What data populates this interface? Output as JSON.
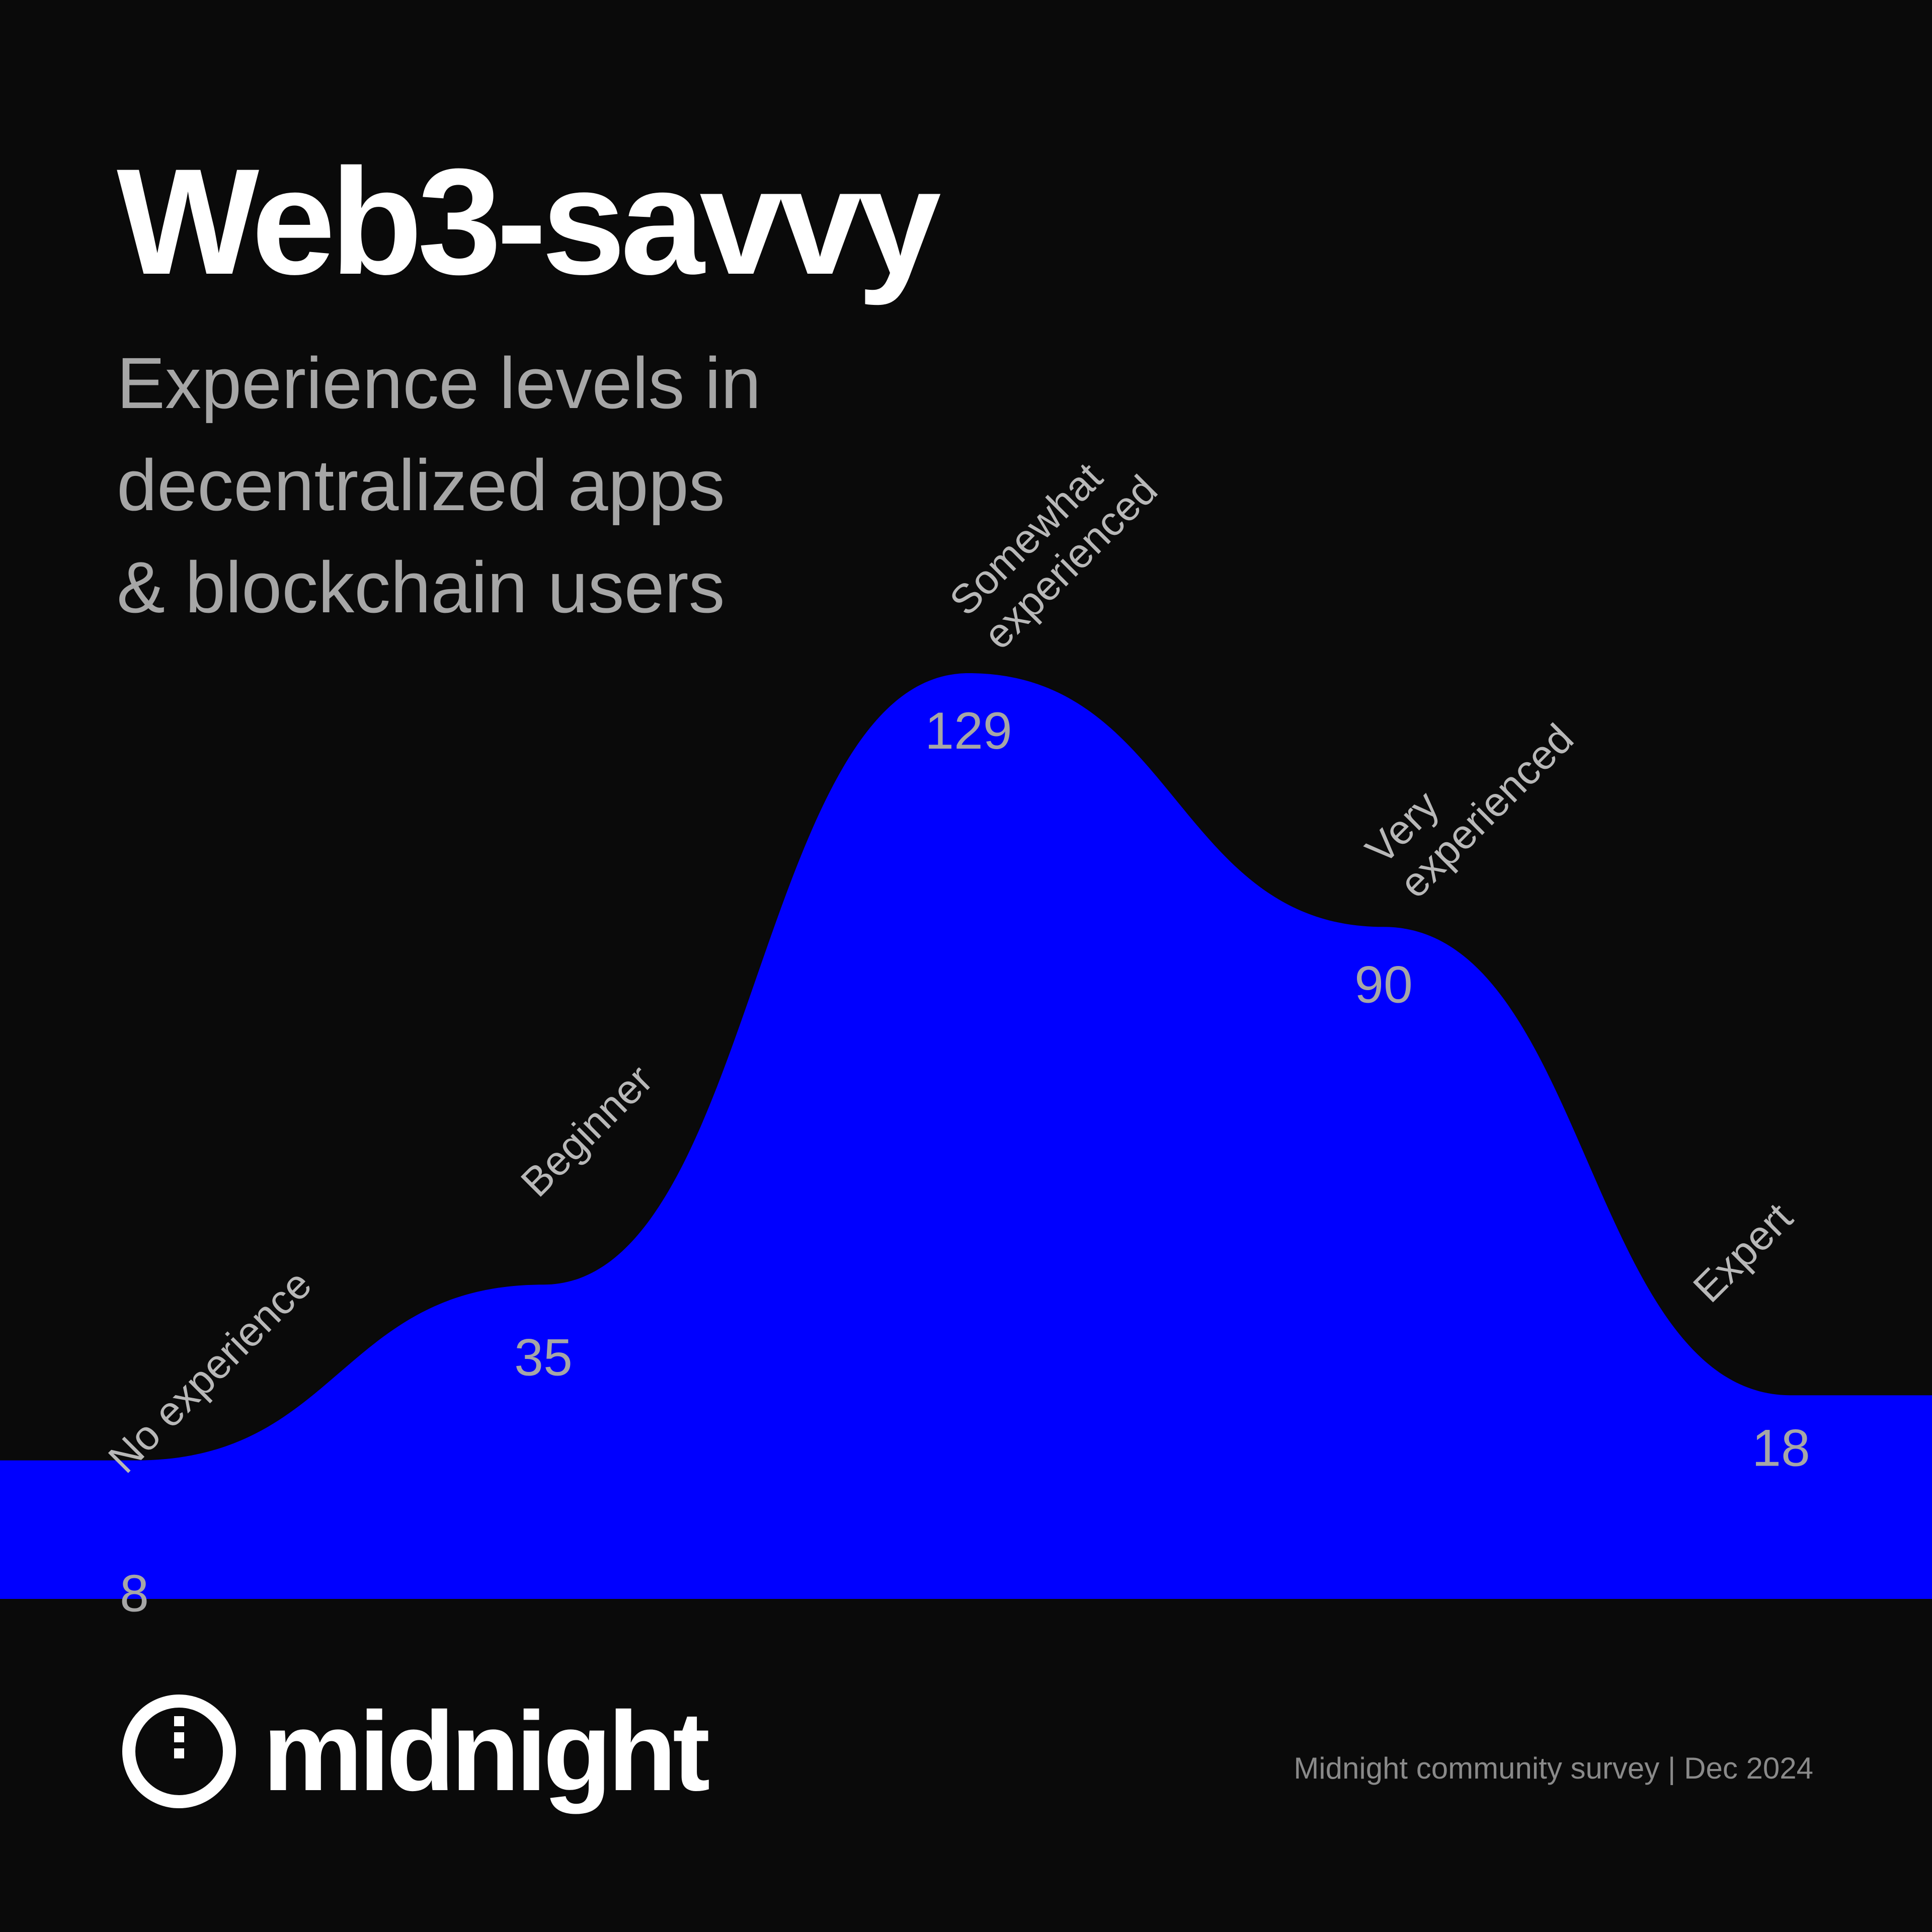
{
  "title": "Web3-savvy",
  "subtitle": [
    "Experience levels in",
    "decentralized apps",
    "& blockchain users"
  ],
  "brand": {
    "name": "midnight",
    "icon": "midnight-logo-icon"
  },
  "source": "Midnight community survey | Dec 2024",
  "colors": {
    "background": "#0a0a0a",
    "area": "#0000ff",
    "title": "#ffffff",
    "subtitle": "#a6a6a6",
    "labels": "#b8b8b8",
    "source": "#8a8a8a"
  },
  "chart_data": {
    "type": "area",
    "categories": [
      [
        "No experience"
      ],
      [
        "Beginner"
      ],
      [
        "Somewhat",
        "experienced"
      ],
      [
        "Very",
        "experienced"
      ],
      [
        "Expert"
      ]
    ],
    "values": [
      8,
      35,
      129,
      90,
      18
    ],
    "value_labels": [
      "8",
      "35",
      "129",
      "90",
      "18"
    ],
    "ylim": [
      0,
      129
    ],
    "grid": false,
    "legend": "none",
    "smoothing": "spline"
  }
}
